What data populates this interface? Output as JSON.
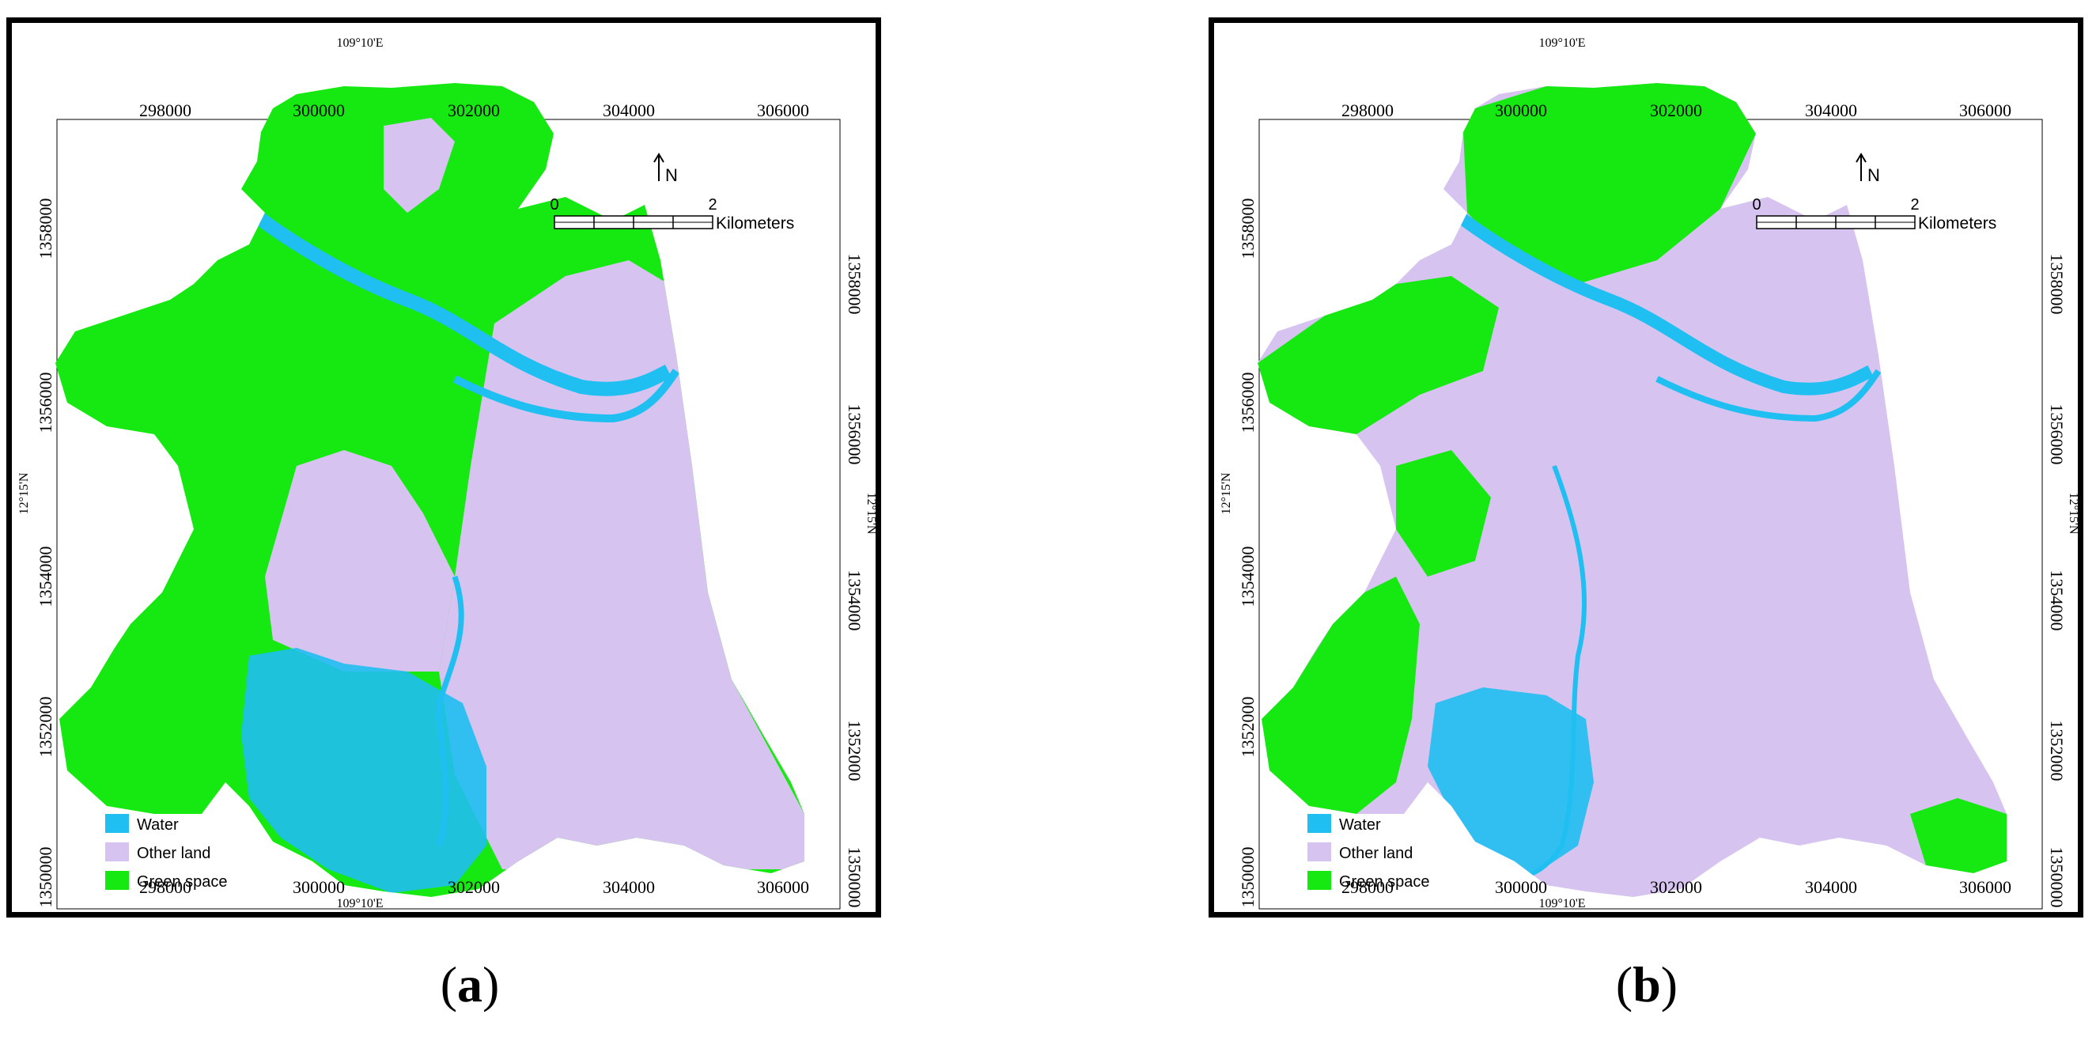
{
  "colors": {
    "water": "#1fbff2",
    "other_land": "#d6c3f0",
    "green_space": "#16e812",
    "frame": "#000000"
  },
  "maps": [
    {
      "caption_letter": "a",
      "top_axis_labels": [
        "298000",
        "300000",
        "302000",
        "304000",
        "306000"
      ],
      "bottom_axis_labels": [
        "298000",
        "300000",
        "302000",
        "304000",
        "306000"
      ],
      "left_axis_labels": [
        "1358000",
        "1356000",
        "1354000",
        "1352000",
        "1350000"
      ],
      "right_axis_labels": [
        "1358000",
        "1356000",
        "1354000",
        "1352000",
        "1350000"
      ],
      "graticule_top": "109°10'E",
      "graticule_bottom": "109°10'E",
      "graticule_left": "12°15'N",
      "graticule_right": "12°15'N",
      "north_label": "N",
      "scale_start": "0",
      "scale_end": "2",
      "scale_unit": "Kilometers",
      "legend": [
        {
          "label": "Water",
          "color": "#1fbff2"
        },
        {
          "label": "Other land",
          "color": "#d6c3f0"
        },
        {
          "label": "Green space",
          "color": "#16e812"
        }
      ]
    },
    {
      "caption_letter": "b",
      "top_axis_labels": [
        "298000",
        "300000",
        "302000",
        "304000",
        "306000"
      ],
      "bottom_axis_labels": [
        "298000",
        "300000",
        "302000",
        "304000",
        "306000"
      ],
      "left_axis_labels": [
        "1358000",
        "1356000",
        "1354000",
        "1352000",
        "1350000"
      ],
      "right_axis_labels": [
        "1358000",
        "1356000",
        "1354000",
        "1352000",
        "1350000"
      ],
      "graticule_top": "109°10'E",
      "graticule_bottom": "109°10'E",
      "graticule_left": "12°15'N",
      "graticule_right": "12°15'N",
      "north_label": "N",
      "scale_start": "0",
      "scale_end": "2",
      "scale_unit": "Kilometers",
      "legend": [
        {
          "label": "Water",
          "color": "#1fbff2"
        },
        {
          "label": "Other land",
          "color": "#d6c3f0"
        },
        {
          "label": "Green space",
          "color": "#16e812"
        }
      ]
    }
  ]
}
